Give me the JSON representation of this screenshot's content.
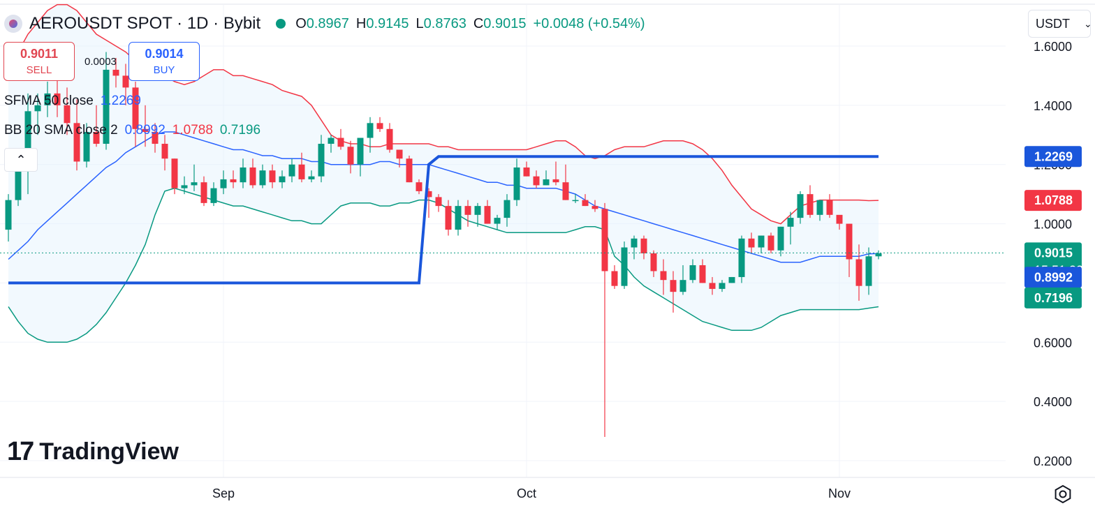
{
  "header": {
    "title": "AEROUSDT SPOT · 1D · Bybit",
    "ohlc": [
      {
        "k": "O",
        "v": "0.8967"
      },
      {
        "k": "H",
        "v": "0.9145"
      },
      {
        "k": "L",
        "v": "0.8763"
      },
      {
        "k": "C",
        "v": "0.9015"
      },
      {
        "k": "",
        "v": "+0.0048 (+0.54%)"
      }
    ]
  },
  "trade": {
    "sell_price": "0.9011",
    "sell_label": "SELL",
    "buy_price": "0.9014",
    "buy_label": "BUY",
    "spread": "0.0003"
  },
  "legend": {
    "sfma_label": "SFMA 50 close",
    "sfma_value": "1.2269",
    "bb_label": "BB 20 SMA close 2",
    "bb_basis": "0.8992",
    "bb_upper": "1.0788",
    "bb_lower": "0.7196"
  },
  "currency": "USDT",
  "logo": {
    "mark": "17",
    "word": "TradingView"
  },
  "price_badges": {
    "sfma": "1.2269",
    "upper": "1.0788",
    "last": "0.9015",
    "countdown": "15:51:32",
    "basis": "0.8992",
    "lower": "0.7196"
  },
  "colors": {
    "up": "#089981",
    "down": "#f23645",
    "sfma": "#1a56db",
    "bb_basis": "#2962ff",
    "bb_upper": "#f23645",
    "bb_lower": "#089981",
    "bb_fill": "#e3f2fd"
  },
  "icons": {
    "settings": "gear-icon",
    "collapse": "chevron-up-icon"
  },
  "chart_data": {
    "type": "candlestick",
    "title": "AEROUSDT SPOT · 1D · Bybit",
    "y_ticks": [
      "1.6000",
      "1.4000",
      "1.2000",
      "1.0000",
      "0.6000",
      "0.4000",
      "0.2000"
    ],
    "y_tick_values": [
      1.6,
      1.4,
      1.2,
      1.0,
      0.6,
      0.4,
      0.2
    ],
    "x_ticks": [
      {
        "label": "Sep",
        "index": 22
      },
      {
        "label": "Oct",
        "index": 53
      },
      {
        "label": "Nov",
        "index": 85
      }
    ],
    "ylim": [
      0.12,
      1.73
    ],
    "candles": [
      [
        0.98,
        1.1,
        0.94,
        1.08
      ],
      [
        1.08,
        1.22,
        1.06,
        1.18
      ],
      [
        1.18,
        1.44,
        1.1,
        1.38
      ],
      [
        1.38,
        1.44,
        1.3,
        1.4
      ],
      [
        1.4,
        1.48,
        1.36,
        1.44
      ],
      [
        1.44,
        1.52,
        1.36,
        1.4
      ],
      [
        1.4,
        1.46,
        1.3,
        1.34
      ],
      [
        1.34,
        1.42,
        1.18,
        1.21
      ],
      [
        1.21,
        1.34,
        1.19,
        1.31
      ],
      [
        1.31,
        1.4,
        1.26,
        1.27
      ],
      [
        1.27,
        1.58,
        1.25,
        1.52
      ],
      [
        1.52,
        1.56,
        1.46,
        1.5
      ],
      [
        1.5,
        1.54,
        1.4,
        1.46
      ],
      [
        1.46,
        1.48,
        1.26,
        1.32
      ],
      [
        1.32,
        1.4,
        1.26,
        1.31
      ],
      [
        1.31,
        1.34,
        1.24,
        1.27
      ],
      [
        1.27,
        1.3,
        1.18,
        1.22
      ],
      [
        1.22,
        1.22,
        1.1,
        1.12
      ],
      [
        1.12,
        1.16,
        1.1,
        1.13
      ],
      [
        1.13,
        1.2,
        1.11,
        1.14
      ],
      [
        1.14,
        1.16,
        1.06,
        1.07
      ],
      [
        1.07,
        1.14,
        1.06,
        1.12
      ],
      [
        1.12,
        1.18,
        1.1,
        1.15
      ],
      [
        1.15,
        1.18,
        1.12,
        1.14
      ],
      [
        1.14,
        1.22,
        1.12,
        1.19
      ],
      [
        1.19,
        1.22,
        1.12,
        1.13
      ],
      [
        1.13,
        1.2,
        1.12,
        1.18
      ],
      [
        1.18,
        1.2,
        1.12,
        1.14
      ],
      [
        1.14,
        1.18,
        1.12,
        1.16
      ],
      [
        1.16,
        1.22,
        1.14,
        1.2
      ],
      [
        1.2,
        1.24,
        1.14,
        1.15
      ],
      [
        1.15,
        1.18,
        1.14,
        1.16
      ],
      [
        1.16,
        1.3,
        1.14,
        1.27
      ],
      [
        1.27,
        1.3,
        1.24,
        1.29
      ],
      [
        1.29,
        1.32,
        1.25,
        1.26
      ],
      [
        1.26,
        1.28,
        1.17,
        1.2
      ],
      [
        1.2,
        1.28,
        1.16,
        1.29
      ],
      [
        1.29,
        1.36,
        1.24,
        1.34
      ],
      [
        1.34,
        1.36,
        1.31,
        1.32
      ],
      [
        1.32,
        1.34,
        1.24,
        1.25
      ],
      [
        1.25,
        1.24,
        1.19,
        1.22
      ],
      [
        1.22,
        1.23,
        1.14,
        1.14
      ],
      [
        1.14,
        1.15,
        1.1,
        1.11
      ],
      [
        1.11,
        1.12,
        1.02,
        1.09
      ],
      [
        1.09,
        1.1,
        1.04,
        1.06
      ],
      [
        1.06,
        1.08,
        0.96,
        0.98
      ],
      [
        0.98,
        1.08,
        0.96,
        1.06
      ],
      [
        1.06,
        1.08,
        0.99,
        1.03
      ],
      [
        1.03,
        1.07,
        0.99,
        1.06
      ],
      [
        1.06,
        1.08,
        1.0,
        1.0
      ],
      [
        1.0,
        1.03,
        0.98,
        1.02
      ],
      [
        1.02,
        1.1,
        0.99,
        1.08
      ],
      [
        1.08,
        1.22,
        1.06,
        1.19
      ],
      [
        1.19,
        1.21,
        1.16,
        1.16
      ],
      [
        1.16,
        1.18,
        1.12,
        1.13
      ],
      [
        1.13,
        1.18,
        1.13,
        1.15
      ],
      [
        1.15,
        1.21,
        1.13,
        1.14
      ],
      [
        1.14,
        1.2,
        1.08,
        1.08
      ],
      [
        1.08,
        1.1,
        1.07,
        1.08
      ],
      [
        1.08,
        1.1,
        1.06,
        1.06
      ],
      [
        1.06,
        1.08,
        1.04,
        1.05
      ],
      [
        1.05,
        1.07,
        0.28,
        0.84
      ],
      [
        0.84,
        0.86,
        0.78,
        0.79
      ],
      [
        0.79,
        0.94,
        0.78,
        0.92
      ],
      [
        0.92,
        0.96,
        0.88,
        0.95
      ],
      [
        0.95,
        0.96,
        0.88,
        0.9
      ],
      [
        0.9,
        0.91,
        0.82,
        0.84
      ],
      [
        0.84,
        0.88,
        0.76,
        0.81
      ],
      [
        0.81,
        0.84,
        0.7,
        0.77
      ],
      [
        0.77,
        0.86,
        0.76,
        0.81
      ],
      [
        0.81,
        0.88,
        0.8,
        0.86
      ],
      [
        0.86,
        0.88,
        0.8,
        0.8
      ],
      [
        0.8,
        0.82,
        0.76,
        0.78
      ],
      [
        0.78,
        0.81,
        0.77,
        0.8
      ],
      [
        0.8,
        0.82,
        0.8,
        0.82
      ],
      [
        0.82,
        0.96,
        0.8,
        0.95
      ],
      [
        0.95,
        0.97,
        0.9,
        0.92
      ],
      [
        0.92,
        0.96,
        0.9,
        0.96
      ],
      [
        0.96,
        0.97,
        0.9,
        0.91
      ],
      [
        0.91,
        0.99,
        0.89,
        0.99
      ],
      [
        0.99,
        1.04,
        0.93,
        1.02
      ],
      [
        1.02,
        1.11,
        1.0,
        1.1
      ],
      [
        1.1,
        1.13,
        1.02,
        1.03
      ],
      [
        1.03,
        1.08,
        1.01,
        1.08
      ],
      [
        1.08,
        1.1,
        1.02,
        1.03
      ],
      [
        1.03,
        1.02,
        0.98,
        1.0
      ],
      [
        1.0,
        1.0,
        0.82,
        0.88
      ],
      [
        0.88,
        0.93,
        0.74,
        0.79
      ],
      [
        0.79,
        0.92,
        0.76,
        0.89
      ],
      [
        0.89,
        0.91,
        0.88,
        0.9
      ]
    ],
    "sfma": [
      [
        0,
        0.8
      ],
      [
        42,
        0.8
      ],
      [
        43,
        1.2
      ],
      [
        44,
        1.2269
      ],
      [
        89,
        1.2269
      ]
    ],
    "bb_upper": [
      1.55,
      1.58,
      1.64,
      1.68,
      1.72,
      1.74,
      1.74,
      1.72,
      1.68,
      1.64,
      1.62,
      1.6,
      1.58,
      1.55,
      1.52,
      1.5,
      1.5,
      1.48,
      1.47,
      1.48,
      1.5,
      1.52,
      1.52,
      1.5,
      1.5,
      1.49,
      1.48,
      1.47,
      1.45,
      1.44,
      1.43,
      1.4,
      1.35,
      1.3,
      1.28,
      1.27,
      1.27,
      1.26,
      1.26,
      1.27,
      1.27,
      1.27,
      1.27,
      1.27,
      1.26,
      1.26,
      1.25,
      1.25,
      1.25,
      1.25,
      1.25,
      1.25,
      1.25,
      1.25,
      1.26,
      1.27,
      1.28,
      1.28,
      1.26,
      1.23,
      1.22,
      1.23,
      1.25,
      1.26,
      1.26,
      1.26,
      1.27,
      1.28,
      1.28,
      1.28,
      1.27,
      1.25,
      1.22,
      1.18,
      1.13,
      1.09,
      1.05,
      1.03,
      1.01,
      1.0,
      1.03,
      1.06,
      1.07,
      1.08,
      1.08,
      1.08,
      1.08,
      1.08,
      1.078,
      1.0788
    ],
    "bb_basis": [
      0.88,
      0.91,
      0.94,
      0.98,
      1.01,
      1.04,
      1.07,
      1.1,
      1.13,
      1.16,
      1.19,
      1.21,
      1.24,
      1.26,
      1.28,
      1.3,
      1.31,
      1.31,
      1.3,
      1.29,
      1.28,
      1.27,
      1.26,
      1.25,
      1.25,
      1.24,
      1.23,
      1.23,
      1.22,
      1.22,
      1.22,
      1.21,
      1.21,
      1.2,
      1.2,
      1.2,
      1.2,
      1.2,
      1.21,
      1.21,
      1.2,
      1.2,
      1.2,
      1.2,
      1.19,
      1.18,
      1.17,
      1.16,
      1.15,
      1.14,
      1.14,
      1.13,
      1.13,
      1.12,
      1.12,
      1.12,
      1.12,
      1.11,
      1.1,
      1.08,
      1.06,
      1.05,
      1.04,
      1.03,
      1.02,
      1.01,
      1.0,
      0.99,
      0.98,
      0.97,
      0.96,
      0.95,
      0.94,
      0.93,
      0.92,
      0.91,
      0.9,
      0.89,
      0.88,
      0.87,
      0.87,
      0.87,
      0.88,
      0.89,
      0.89,
      0.89,
      0.89,
      0.89,
      0.898,
      0.8992
    ],
    "bb_lower": [
      0.72,
      0.67,
      0.63,
      0.61,
      0.6,
      0.6,
      0.6,
      0.61,
      0.63,
      0.66,
      0.7,
      0.75,
      0.8,
      0.86,
      0.93,
      1.03,
      1.11,
      1.12,
      1.11,
      1.1,
      1.09,
      1.08,
      1.07,
      1.06,
      1.06,
      1.05,
      1.04,
      1.03,
      1.02,
      1.01,
      1.01,
      1.0,
      1.0,
      1.03,
      1.06,
      1.07,
      1.07,
      1.07,
      1.06,
      1.06,
      1.07,
      1.07,
      1.08,
      1.08,
      1.07,
      1.05,
      1.03,
      1.01,
      1.0,
      0.99,
      0.98,
      0.97,
      0.97,
      0.97,
      0.97,
      0.97,
      0.97,
      0.97,
      0.98,
      0.99,
      0.99,
      0.98,
      0.89,
      0.86,
      0.82,
      0.79,
      0.77,
      0.75,
      0.73,
      0.71,
      0.69,
      0.67,
      0.66,
      0.65,
      0.64,
      0.64,
      0.64,
      0.65,
      0.67,
      0.69,
      0.7,
      0.71,
      0.71,
      0.71,
      0.71,
      0.71,
      0.71,
      0.71,
      0.715,
      0.7196
    ],
    "last_price": 0.9015
  }
}
